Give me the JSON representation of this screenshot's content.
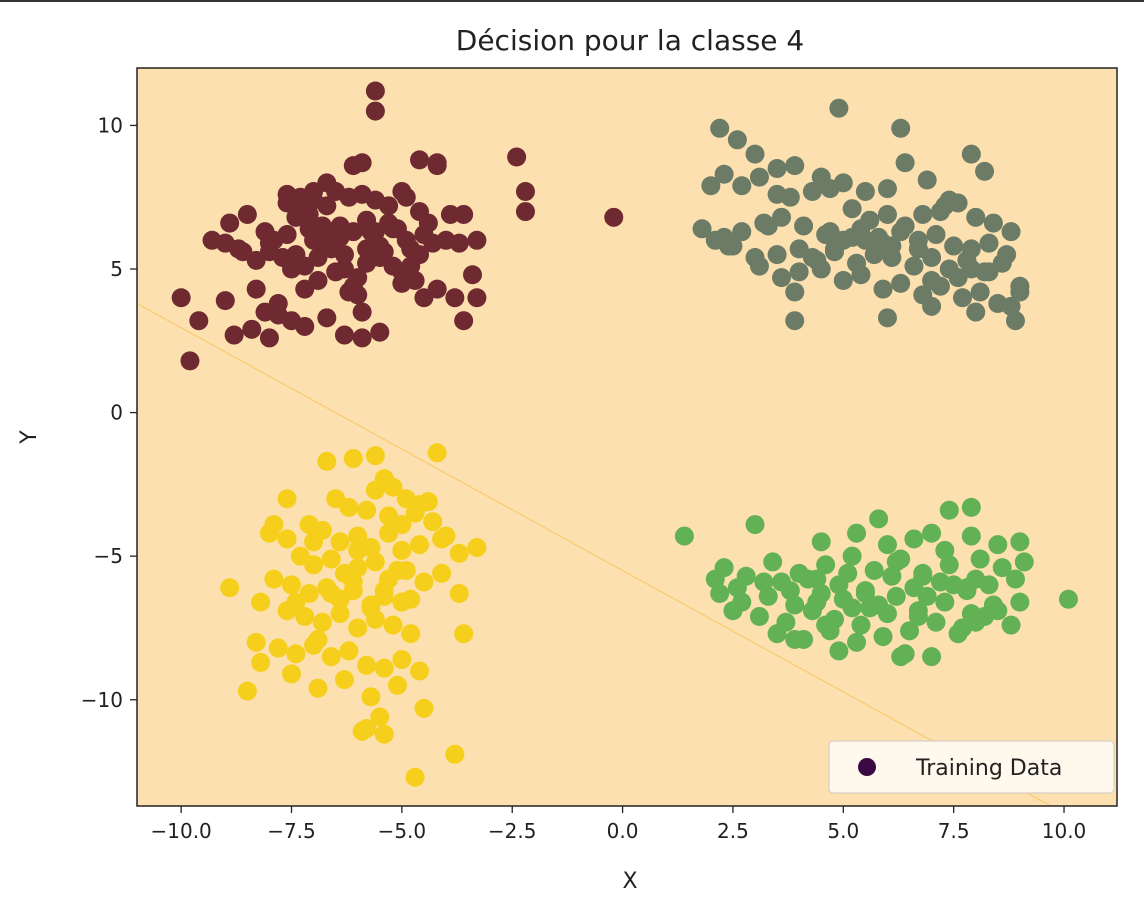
{
  "chart_data": {
    "type": "scatter",
    "title": "Décision pour la classe 4",
    "xlabel": "X",
    "ylabel": "Y",
    "xlim": [
      -11.0,
      11.2
    ],
    "ylim": [
      -13.7,
      12.0
    ],
    "xticks": [
      -10.0,
      -7.5,
      -5.0,
      -2.5,
      0.0,
      2.5,
      5.0,
      7.5,
      10.0
    ],
    "xtick_labels": [
      "−10.0",
      "−7.5",
      "−5.0",
      "−2.5",
      "0.0",
      "2.5",
      "5.0",
      "7.5",
      "10.0"
    ],
    "yticks": [
      10,
      5,
      0,
      -5,
      -10
    ],
    "ytick_labels": [
      "10",
      "5",
      "0",
      "−5",
      "−10"
    ],
    "grid": false,
    "legend": {
      "entries": [
        "Training Data"
      ],
      "placement": "bottom-right",
      "marker_color": "#3b0a45"
    },
    "colors": {
      "region": "#fde0b0",
      "boundary": "#f7c35f",
      "cluster_dark_red": "#6e2a30",
      "cluster_gray_green": "#6b7b66",
      "cluster_yellow": "#f6cf1c",
      "cluster_green": "#62b255"
    },
    "decision_boundary": {
      "x": [
        -11.0,
        9.7
      ],
      "y": [
        3.8,
        -13.7
      ]
    },
    "series": [
      {
        "color": "#6e2a30",
        "x": [
          -5.6,
          -5.6,
          -2.4,
          -2.2,
          -2.2,
          -0.2,
          -4.2,
          -4.2,
          -4.6,
          -6.1,
          -5.9,
          -6.7,
          -7.0,
          -7.3,
          -7.6,
          -7.6,
          -7.2,
          -7.0,
          -6.5,
          -6.2,
          -5.9,
          -5.6,
          -5.3,
          -5.0,
          -4.9,
          -4.6,
          -4.4,
          -3.9,
          -3.6,
          -3.3,
          -8.5,
          -8.1,
          -7.9,
          -7.6,
          -7.4,
          -7.1,
          -6.8,
          -6.6,
          -6.4,
          -6.1,
          -5.8,
          -5.6,
          -5.5,
          -5.2,
          -4.9,
          -4.8,
          -4.5,
          -4.3,
          -4.0,
          -3.7,
          -3.4,
          -9.0,
          -8.7,
          -8.3,
          -8.0,
          -7.7,
          -7.5,
          -7.2,
          -6.9,
          -6.6,
          -6.3,
          -6.0,
          -5.8,
          -5.5,
          -5.2,
          -5.0,
          -4.7,
          -4.2,
          -3.8,
          -3.3,
          -10.0,
          -9.6,
          -8.8,
          -8.4,
          -8.1,
          -7.8,
          -7.5,
          -7.2,
          -6.7,
          -6.1,
          -5.9,
          -5.5,
          -4.5,
          -3.6,
          -9.0,
          -9.3,
          -8.6,
          -8.3,
          -7.0,
          -6.3,
          -5.9,
          -6.9,
          -6.5,
          -6.2,
          -5.7,
          -5.4,
          -7.8,
          -7.2,
          -6.8,
          -6.4,
          -5.0,
          -4.6,
          -8.0,
          -7.4,
          -6.0,
          -5.3,
          -4.8,
          -6.7,
          -7.1,
          -5.8,
          -9.8,
          -8.9,
          -8.0,
          -6.3,
          -5.1
        ],
        "y": [
          11.2,
          10.5,
          8.9,
          7.7,
          7.0,
          6.8,
          8.7,
          8.6,
          8.8,
          8.6,
          8.7,
          8.0,
          7.7,
          7.5,
          7.6,
          7.3,
          7.1,
          7.4,
          7.7,
          7.5,
          7.6,
          7.4,
          7.2,
          7.7,
          7.5,
          7.0,
          6.6,
          6.9,
          6.9,
          6.0,
          6.9,
          6.3,
          6.0,
          6.2,
          6.8,
          6.4,
          6.5,
          6.2,
          6.5,
          6.3,
          6.7,
          6.3,
          5.8,
          6.4,
          6.0,
          5.7,
          6.2,
          5.9,
          6.0,
          5.9,
          4.8,
          5.9,
          5.7,
          5.3,
          5.6,
          5.4,
          5.0,
          5.1,
          5.4,
          5.7,
          5.0,
          4.7,
          5.2,
          5.4,
          5.1,
          4.9,
          4.6,
          4.3,
          4.0,
          4.0,
          4.0,
          3.2,
          2.7,
          2.9,
          3.5,
          3.8,
          3.2,
          4.3,
          3.3,
          4.4,
          3.5,
          2.8,
          4.0,
          3.2,
          3.9,
          6.0,
          5.6,
          4.3,
          6.0,
          2.7,
          2.6,
          4.6,
          4.9,
          4.2,
          6.3,
          5.6,
          3.4,
          3.0,
          5.8,
          6.1,
          4.5,
          5.5,
          5.9,
          5.5,
          4.1,
          6.6,
          5.1,
          7.2,
          6.9,
          5.7,
          1.8,
          6.6,
          2.6,
          5.5,
          6.4
        ]
      },
      {
        "color": "#6b7b66",
        "x": [
          4.9,
          2.2,
          2.6,
          3.0,
          3.5,
          3.9,
          4.5,
          5.0,
          5.5,
          6.0,
          6.4,
          6.9,
          7.4,
          7.9,
          8.2,
          2.0,
          2.3,
          2.7,
          3.1,
          3.5,
          3.8,
          4.3,
          4.7,
          5.2,
          5.6,
          6.0,
          6.4,
          6.8,
          7.2,
          7.6,
          8.0,
          8.4,
          8.8,
          1.8,
          2.3,
          2.7,
          3.2,
          3.6,
          4.1,
          4.6,
          5.0,
          5.4,
          5.8,
          6.3,
          6.7,
          7.1,
          7.5,
          7.9,
          8.3,
          8.7,
          2.1,
          2.5,
          3.0,
          3.5,
          4.0,
          4.4,
          4.8,
          5.3,
          5.7,
          6.1,
          6.6,
          7.0,
          7.4,
          7.8,
          8.2,
          8.6,
          9.0,
          3.1,
          3.6,
          4.0,
          4.5,
          5.0,
          5.4,
          5.9,
          6.3,
          6.8,
          7.2,
          7.7,
          8.1,
          8.5,
          8.9,
          3.9,
          6.0,
          7.0,
          8.0,
          9.0,
          3.9,
          7.3,
          6.3,
          5.2,
          4.8,
          6.1,
          7.6,
          8.8,
          4.3,
          5.5,
          6.7,
          7.9,
          2.4,
          3.3,
          4.7,
          5.9,
          7.0,
          8.3
        ],
        "y": [
          10.6,
          9.9,
          9.5,
          9.0,
          8.5,
          8.6,
          8.2,
          8.0,
          7.7,
          7.8,
          8.7,
          8.1,
          7.4,
          9.0,
          8.4,
          7.9,
          8.3,
          7.9,
          8.2,
          7.6,
          7.5,
          7.7,
          7.8,
          7.1,
          6.7,
          6.9,
          6.5,
          6.9,
          7.0,
          7.3,
          6.8,
          6.6,
          6.3,
          6.4,
          6.1,
          6.3,
          6.6,
          6.8,
          6.5,
          6.2,
          6.0,
          6.4,
          6.1,
          6.3,
          6.0,
          6.2,
          5.8,
          5.7,
          5.9,
          5.5,
          6.0,
          5.8,
          5.4,
          5.5,
          5.7,
          5.3,
          5.6,
          5.2,
          5.5,
          5.8,
          5.1,
          5.4,
          5.0,
          5.3,
          4.9,
          5.2,
          4.4,
          5.1,
          4.7,
          4.9,
          5.0,
          4.6,
          4.8,
          4.3,
          4.5,
          4.1,
          4.4,
          4.0,
          4.2,
          3.8,
          3.2,
          3.2,
          3.3,
          3.7,
          3.5,
          4.2,
          4.2,
          7.2,
          9.9,
          6.1,
          5.7,
          5.4,
          4.7,
          3.7,
          5.4,
          6.0,
          5.7,
          5.0,
          5.8,
          6.5,
          6.3,
          5.9,
          4.6,
          4.9
        ]
      },
      {
        "color": "#f6cf1c",
        "x": [
          -4.2,
          -5.6,
          -6.1,
          -6.7,
          -5.4,
          -5.6,
          -5.2,
          -4.9,
          -4.6,
          -4.4,
          -7.6,
          -7.9,
          -6.5,
          -6.2,
          -5.8,
          -5.3,
          -5.0,
          -4.7,
          -4.3,
          -4.0,
          -8.0,
          -7.6,
          -7.1,
          -6.8,
          -6.4,
          -6.0,
          -5.7,
          -5.3,
          -5.0,
          -4.6,
          -4.1,
          -3.7,
          -3.3,
          -7.3,
          -7.0,
          -6.6,
          -6.3,
          -6.0,
          -5.6,
          -5.3,
          -4.9,
          -4.5,
          -4.1,
          -7.9,
          -7.5,
          -7.1,
          -6.7,
          -6.4,
          -6.1,
          -5.7,
          -5.4,
          -5.0,
          -3.7,
          -8.9,
          -8.2,
          -7.6,
          -7.2,
          -6.8,
          -6.4,
          -6.0,
          -5.6,
          -5.2,
          -4.8,
          -3.6,
          -8.3,
          -7.8,
          -7.4,
          -7.0,
          -6.6,
          -6.2,
          -5.8,
          -5.4,
          -5.0,
          -4.6,
          -8.2,
          -7.5,
          -6.9,
          -6.3,
          -5.7,
          -5.1,
          -8.5,
          -5.8,
          -5.4,
          -4.5,
          -5.9,
          -5.5,
          -3.8,
          -4.7,
          -5.7,
          -6.0,
          -6.6,
          -7.0,
          -5.1,
          -4.8,
          -7.4,
          -6.9,
          -6.1,
          -5.4
        ],
        "y": [
          -1.4,
          -1.5,
          -1.6,
          -1.7,
          -2.3,
          -2.7,
          -2.6,
          -3.0,
          -3.2,
          -3.1,
          -3.0,
          -3.9,
          -3.0,
          -3.3,
          -3.4,
          -3.6,
          -3.9,
          -3.5,
          -3.8,
          -4.3,
          -4.2,
          -4.4,
          -3.9,
          -4.1,
          -4.5,
          -4.3,
          -4.7,
          -4.2,
          -4.8,
          -4.6,
          -4.4,
          -4.9,
          -4.7,
          -5.0,
          -5.3,
          -5.1,
          -5.6,
          -5.4,
          -5.2,
          -5.8,
          -5.5,
          -5.9,
          -5.6,
          -5.8,
          -6.0,
          -6.3,
          -6.1,
          -6.5,
          -6.2,
          -6.7,
          -6.4,
          -6.6,
          -6.3,
          -6.1,
          -6.6,
          -6.9,
          -7.1,
          -7.3,
          -7.0,
          -7.5,
          -7.2,
          -7.4,
          -7.7,
          -7.7,
          -8.0,
          -8.2,
          -8.4,
          -8.1,
          -8.5,
          -8.3,
          -8.8,
          -8.9,
          -8.6,
          -9.0,
          -8.7,
          -9.1,
          -9.6,
          -9.3,
          -9.9,
          -9.5,
          -9.7,
          -11.0,
          -11.2,
          -10.3,
          -11.1,
          -10.6,
          -11.9,
          -12.7,
          -6.8,
          -4.8,
          -6.3,
          -4.5,
          -5.5,
          -6.5,
          -6.6,
          -7.9,
          -5.9,
          -6.2
        ],
        "y_note": ""
      },
      {
        "color": "#62b255",
        "x": [
          7.4,
          7.9,
          5.8,
          7.0,
          1.4,
          3.0,
          4.5,
          5.3,
          6.0,
          6.6,
          7.3,
          7.9,
          8.5,
          9.0,
          2.3,
          2.8,
          3.4,
          4.0,
          4.6,
          5.2,
          5.7,
          6.3,
          6.8,
          7.4,
          8.0,
          8.6,
          9.1,
          10.1,
          2.1,
          2.6,
          3.2,
          3.8,
          4.4,
          4.9,
          5.5,
          6.1,
          6.6,
          7.2,
          7.8,
          8.3,
          8.9,
          2.2,
          2.7,
          3.3,
          3.9,
          4.5,
          5.0,
          5.6,
          6.2,
          6.7,
          7.3,
          7.9,
          8.4,
          9.0,
          2.5,
          3.1,
          3.7,
          4.3,
          4.8,
          5.4,
          6.0,
          6.5,
          7.1,
          7.7,
          8.2,
          8.8,
          3.5,
          4.1,
          4.7,
          5.3,
          5.9,
          6.4,
          7.0,
          7.6,
          8.0,
          8.5,
          4.9,
          6.3,
          6.7,
          5.1,
          3.6,
          4.2,
          5.5,
          6.9,
          7.5,
          8.1,
          4.4,
          5.8,
          6.2,
          7.8,
          3.9,
          4.6,
          5.2,
          6.8
        ],
        "y": [
          -3.4,
          -3.3,
          -3.7,
          -4.2,
          -4.3,
          -3.9,
          -4.5,
          -4.2,
          -4.6,
          -4.4,
          -4.8,
          -4.3,
          -4.6,
          -4.5,
          -5.4,
          -5.7,
          -5.2,
          -5.6,
          -5.3,
          -5.0,
          -5.5,
          -5.1,
          -5.6,
          -5.3,
          -5.8,
          -5.4,
          -5.2,
          -6.5,
          -5.8,
          -6.1,
          -5.9,
          -6.2,
          -5.8,
          -6.0,
          -6.3,
          -5.7,
          -6.1,
          -5.9,
          -6.2,
          -6.0,
          -5.8,
          -6.3,
          -6.6,
          -6.4,
          -6.7,
          -6.3,
          -6.5,
          -6.8,
          -6.4,
          -6.9,
          -6.6,
          -7.0,
          -6.7,
          -6.6,
          -6.9,
          -7.1,
          -7.3,
          -6.9,
          -7.2,
          -7.4,
          -7.0,
          -7.6,
          -7.3,
          -7.5,
          -7.1,
          -7.4,
          -7.7,
          -7.9,
          -7.6,
          -8.0,
          -7.8,
          -8.4,
          -8.5,
          -7.7,
          -7.3,
          -6.9,
          -8.3,
          -8.5,
          -7.1,
          -5.6,
          -5.9,
          -5.8,
          -6.2,
          -6.4,
          -6.0,
          -5.1,
          -6.6,
          -6.7,
          -5.2,
          -6.1,
          -7.9,
          -7.4,
          -6.8,
          -5.7
        ]
      }
    ]
  }
}
